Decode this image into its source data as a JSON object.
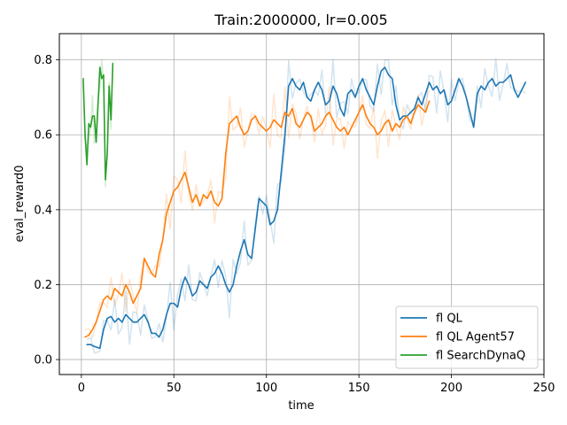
{
  "chart_data": {
    "type": "line",
    "title": "Train:2000000, lr=0.005",
    "xlabel": "time",
    "ylabel": "eval_reward0",
    "xlim": [
      -11.9,
      250
    ],
    "ylim": [
      -0.04,
      0.87
    ],
    "xticks": [
      0,
      50,
      100,
      150,
      200,
      250
    ],
    "yticks": [
      0.0,
      0.2,
      0.4,
      0.6,
      0.8
    ],
    "xtick_labels": [
      "0",
      "50",
      "100",
      "150",
      "200",
      "250"
    ],
    "ytick_labels": [
      "0.0",
      "0.2",
      "0.4",
      "0.6",
      "0.8"
    ],
    "grid": true,
    "legend_position": "lower-right",
    "raw_alpha": 0.2,
    "series": [
      {
        "name": "fl QL",
        "color": "#1f77b4",
        "x": [
          3,
          5,
          7,
          10,
          12,
          14,
          16,
          18,
          20,
          22,
          24,
          26,
          28,
          30,
          32,
          34,
          36,
          38,
          40,
          42,
          44,
          46,
          48,
          50,
          52,
          54,
          56,
          58,
          60,
          62,
          64,
          66,
          68,
          70,
          72,
          74,
          76,
          78,
          80,
          82,
          84,
          86,
          88,
          90,
          92,
          94,
          96,
          98,
          100,
          102,
          104,
          106,
          108,
          110,
          112,
          114,
          116,
          118,
          120,
          122,
          124,
          126,
          128,
          130,
          132,
          134,
          136,
          138,
          140,
          142,
          144,
          146,
          148,
          150,
          152,
          154,
          156,
          158,
          160,
          162,
          164,
          166,
          168,
          170,
          172,
          174,
          176,
          178,
          180,
          182,
          184,
          186,
          188,
          190,
          192,
          194,
          196,
          198,
          200,
          202,
          204,
          206,
          208,
          210,
          212,
          214,
          216,
          218,
          220,
          222,
          224,
          226,
          228,
          230,
          232,
          234,
          236,
          238,
          240
        ],
        "values": [
          0.04,
          0.04,
          0.035,
          0.03,
          0.08,
          0.11,
          0.115,
          0.1,
          0.11,
          0.1,
          0.12,
          0.11,
          0.1,
          0.1,
          0.11,
          0.12,
          0.1,
          0.07,
          0.07,
          0.06,
          0.08,
          0.12,
          0.15,
          0.15,
          0.14,
          0.19,
          0.22,
          0.2,
          0.17,
          0.18,
          0.21,
          0.2,
          0.19,
          0.22,
          0.23,
          0.25,
          0.23,
          0.2,
          0.18,
          0.2,
          0.25,
          0.29,
          0.32,
          0.28,
          0.27,
          0.35,
          0.43,
          0.42,
          0.41,
          0.36,
          0.37,
          0.4,
          0.5,
          0.6,
          0.73,
          0.75,
          0.73,
          0.72,
          0.74,
          0.7,
          0.69,
          0.72,
          0.74,
          0.72,
          0.68,
          0.69,
          0.73,
          0.71,
          0.67,
          0.65,
          0.71,
          0.72,
          0.7,
          0.73,
          0.75,
          0.72,
          0.7,
          0.68,
          0.73,
          0.77,
          0.78,
          0.76,
          0.75,
          0.68,
          0.64,
          0.65,
          0.65,
          0.66,
          0.67,
          0.7,
          0.68,
          0.71,
          0.74,
          0.72,
          0.73,
          0.71,
          0.72,
          0.68,
          0.69,
          0.72,
          0.75,
          0.73,
          0.7,
          0.66,
          0.62,
          0.71,
          0.73,
          0.72,
          0.74,
          0.75,
          0.73,
          0.74,
          0.74,
          0.75,
          0.76,
          0.72,
          0.7,
          0.72,
          0.74
        ]
      },
      {
        "name": "fl QL Agent57",
        "color": "#ff7f0e",
        "x": [
          2,
          4,
          6,
          8,
          10,
          12,
          14,
          16,
          18,
          20,
          22,
          24,
          26,
          28,
          30,
          32,
          34,
          36,
          38,
          40,
          42,
          44,
          46,
          48,
          50,
          52,
          54,
          56,
          58,
          60,
          62,
          64,
          66,
          68,
          70,
          72,
          74,
          76,
          78,
          80,
          82,
          84,
          86,
          88,
          90,
          92,
          94,
          96,
          98,
          100,
          102,
          104,
          106,
          108,
          110,
          112,
          114,
          116,
          118,
          120,
          122,
          124,
          126,
          128,
          130,
          132,
          134,
          136,
          138,
          140,
          142,
          144,
          146,
          148,
          150,
          152,
          154,
          156,
          158,
          160,
          162,
          164,
          166,
          168,
          170,
          172,
          174,
          176,
          178,
          180,
          182,
          184,
          186,
          188
        ],
        "values": [
          0.06,
          0.065,
          0.08,
          0.1,
          0.13,
          0.16,
          0.17,
          0.16,
          0.19,
          0.18,
          0.17,
          0.2,
          0.18,
          0.15,
          0.17,
          0.19,
          0.27,
          0.25,
          0.23,
          0.22,
          0.28,
          0.32,
          0.39,
          0.42,
          0.45,
          0.46,
          0.48,
          0.5,
          0.46,
          0.42,
          0.44,
          0.41,
          0.44,
          0.43,
          0.45,
          0.42,
          0.41,
          0.43,
          0.55,
          0.63,
          0.64,
          0.65,
          0.62,
          0.6,
          0.61,
          0.64,
          0.65,
          0.63,
          0.62,
          0.61,
          0.62,
          0.64,
          0.63,
          0.62,
          0.66,
          0.65,
          0.67,
          0.63,
          0.62,
          0.64,
          0.66,
          0.65,
          0.61,
          0.62,
          0.63,
          0.65,
          0.66,
          0.64,
          0.62,
          0.61,
          0.62,
          0.6,
          0.62,
          0.64,
          0.66,
          0.68,
          0.65,
          0.63,
          0.62,
          0.6,
          0.61,
          0.63,
          0.64,
          0.61,
          0.63,
          0.62,
          0.64,
          0.65,
          0.63,
          0.66,
          0.68,
          0.67,
          0.66,
          0.69
        ]
      },
      {
        "name": "fl SearchDynaQ",
        "color": "#2ca02c",
        "x": [
          1,
          2,
          3,
          4,
          5,
          6,
          7,
          8,
          9,
          10,
          11,
          12,
          13,
          14,
          15,
          16,
          17
        ],
        "values": [
          0.75,
          0.6,
          0.52,
          0.63,
          0.62,
          0.65,
          0.65,
          0.58,
          0.68,
          0.78,
          0.75,
          0.76,
          0.48,
          0.55,
          0.73,
          0.64,
          0.79
        ]
      }
    ]
  }
}
